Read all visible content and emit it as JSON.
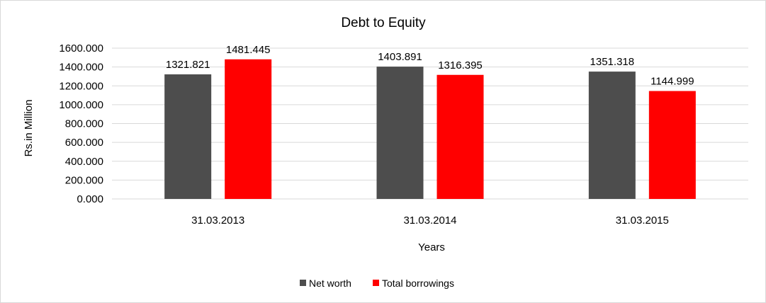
{
  "chart_data": {
    "type": "bar",
    "title": "Debt to Equity",
    "xlabel": "Years",
    "ylabel": "Rs.in Million",
    "categories": [
      "31.03.2013",
      "31.03.2014",
      "31.03.2015"
    ],
    "series": [
      {
        "name": "Net worth",
        "color": "#4d4d4d",
        "values": [
          1321.821,
          1403.891,
          1351.318
        ],
        "labels": [
          "1321.821",
          "1403.891",
          "1351.318"
        ]
      },
      {
        "name": "Total borrowings",
        "color": "#ff0000",
        "values": [
          1481.445,
          1316.395,
          1144.999
        ],
        "labels": [
          "1481.445",
          "1316.395",
          "1144.999"
        ]
      }
    ],
    "ylim": [
      0,
      1600
    ],
    "yticks": [
      0,
      200,
      400,
      600,
      800,
      1000,
      1200,
      1400,
      1600
    ],
    "ytick_labels": [
      "0.000",
      "200.000",
      "400.000",
      "600.000",
      "800.000",
      "1000.000",
      "1200.000",
      "1400.000",
      "1600.000"
    ],
    "grid": true,
    "legend_position": "bottom"
  }
}
